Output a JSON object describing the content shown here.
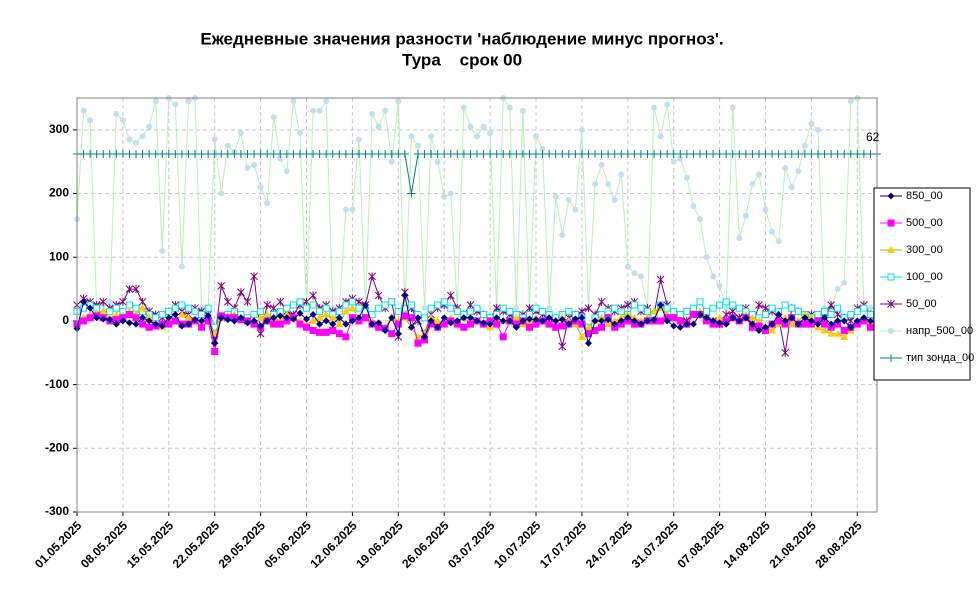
{
  "chart_data": {
    "type": "line",
    "title": "Ежедневные значения разности 'наблюдение минус прогноз'.",
    "subtitle": "Тура    срок 00",
    "annotation": "62",
    "categories": [
      "01.05.2025",
      null,
      null,
      null,
      null,
      null,
      null,
      "08.05.2025",
      null,
      null,
      null,
      null,
      null,
      null,
      "15.05.2025",
      null,
      null,
      null,
      null,
      null,
      null,
      "22.05.2025",
      null,
      null,
      null,
      null,
      null,
      null,
      "29.05.2025",
      null,
      null,
      null,
      null,
      null,
      null,
      "05.06.2025",
      null,
      null,
      null,
      null,
      null,
      null,
      "12.06.2025",
      null,
      null,
      null,
      null,
      null,
      null,
      "19.06.2025",
      null,
      null,
      null,
      null,
      null,
      null,
      "26.06.2025",
      null,
      null,
      null,
      null,
      null,
      null,
      "03.07.2025",
      null,
      null,
      null,
      null,
      null,
      null,
      "10.07.2025",
      null,
      null,
      null,
      null,
      null,
      null,
      "17.07.2025",
      null,
      null,
      null,
      null,
      null,
      null,
      "24.07.2025",
      null,
      null,
      null,
      null,
      null,
      null,
      "31.07.2025",
      null,
      null,
      null,
      null,
      null,
      null,
      "07.08.2025",
      null,
      null,
      null,
      null,
      null,
      null,
      "14.08.2025",
      null,
      null,
      null,
      null,
      null,
      null,
      "21.08.2025",
      null,
      null,
      null,
      null,
      null,
      null,
      "28.08.2025",
      null,
      null,
      null
    ],
    "ylim": [
      -300,
      350
    ],
    "yticks": [
      -300,
      -200,
      -100,
      0,
      100,
      200,
      300
    ],
    "grid": true,
    "series": [
      {
        "name": "850_00",
        "color": "#000080",
        "line_color": "#000080",
        "marker": "diamond",
        "values": [
          -12,
          30,
          20,
          5,
          3,
          2,
          -5,
          0,
          -3,
          -5,
          5,
          0,
          -5,
          -8,
          5,
          10,
          -8,
          -5,
          2,
          0,
          8,
          -35,
          5,
          2,
          0,
          5,
          -3,
          0,
          -8,
          0,
          5,
          8,
          5,
          3,
          12,
          3,
          10,
          -5,
          0,
          -5,
          5,
          -5,
          0,
          5,
          25,
          -5,
          -3,
          -15,
          5,
          -20,
          40,
          -10,
          5,
          -25,
          0,
          -10,
          5,
          -3,
          0,
          5,
          5,
          0,
          -3,
          -5,
          5,
          0,
          0,
          -10,
          0,
          3,
          2,
          0,
          5,
          0,
          2,
          -5,
          3,
          5,
          -35,
          0,
          0,
          2,
          -5,
          0,
          5,
          0,
          -5,
          0,
          2,
          25,
          0,
          -8,
          -10,
          -5,
          -5,
          10,
          5,
          0,
          -3,
          -5,
          5,
          0,
          5,
          -5,
          -15,
          -10,
          -5,
          10,
          0,
          5,
          -5,
          5,
          0,
          -5,
          5,
          -5,
          0,
          0,
          -10,
          0,
          5,
          0,
          -5
        ]
      },
      {
        "name": "500_00",
        "color": "#ff00ff",
        "line_color": "#ff00ff",
        "marker": "square",
        "values": [
          -5,
          0,
          5,
          8,
          5,
          0,
          2,
          5,
          10,
          5,
          -5,
          -10,
          -8,
          -5,
          -5,
          0,
          -5,
          -5,
          0,
          -10,
          0,
          -48,
          8,
          5,
          5,
          2,
          0,
          -5,
          -10,
          0,
          -5,
          -5,
          0,
          5,
          -5,
          -10,
          -15,
          -18,
          -18,
          -15,
          -20,
          -25,
          5,
          0,
          5,
          -5,
          -10,
          -12,
          -20,
          -5,
          8,
          5,
          -35,
          -30,
          -5,
          -10,
          -5,
          0,
          -5,
          -10,
          -5,
          0,
          -5,
          0,
          -5,
          -25,
          0,
          -5,
          0,
          -10,
          -5,
          0,
          -5,
          -10,
          -8,
          -5,
          0,
          -5,
          -20,
          -15,
          -10,
          5,
          -10,
          -5,
          0,
          -5,
          -5,
          0,
          0,
          0,
          5,
          5,
          0,
          -5,
          10,
          10,
          0,
          -5,
          -5,
          0,
          5,
          0,
          5,
          -10,
          -8,
          -15,
          -5,
          0,
          -5,
          5,
          -5,
          -5,
          -5,
          0,
          -5,
          -10,
          -5,
          -15,
          -10,
          -5,
          0,
          -10,
          -15
        ]
      },
      {
        "name": "300_00",
        "color": "#ffcc00",
        "line_color": "#c8a000",
        "marker": "triangle",
        "values": [
          -5,
          5,
          10,
          12,
          15,
          5,
          10,
          8,
          15,
          10,
          20,
          5,
          -5,
          -10,
          5,
          0,
          10,
          5,
          0,
          -5,
          5,
          -20,
          5,
          8,
          10,
          5,
          0,
          -5,
          5,
          10,
          5,
          0,
          10,
          5,
          0,
          -5,
          0,
          5,
          10,
          5,
          -5,
          15,
          20,
          5,
          5,
          0,
          -5,
          -10,
          5,
          0,
          5,
          -10,
          -25,
          -20,
          5,
          0,
          -5,
          5,
          0,
          5,
          5,
          0,
          -5,
          -10,
          5,
          0,
          0,
          5,
          -5,
          0,
          5,
          0,
          -5,
          0,
          5,
          0,
          -5,
          -25,
          -10,
          0,
          5,
          -5,
          0,
          5,
          10,
          5,
          0,
          5,
          15,
          20,
          10,
          5,
          0,
          -5,
          10,
          15,
          5,
          0,
          5,
          0,
          5,
          0,
          10,
          5,
          0,
          -10,
          -15,
          -5,
          5,
          -5,
          0,
          10,
          5,
          -10,
          -15,
          -20,
          -20,
          -25,
          -15,
          -5,
          5,
          0,
          -5
        ]
      },
      {
        "name": "100_00",
        "color": "#00e0e0",
        "line_color": "#00e0e0",
        "marker": "hollow-square",
        "values": [
          15,
          20,
          25,
          20,
          10,
          15,
          20,
          15,
          25,
          20,
          15,
          10,
          5,
          10,
          15,
          20,
          25,
          20,
          15,
          10,
          20,
          -10,
          5,
          10,
          15,
          10,
          5,
          10,
          15,
          5,
          10,
          15,
          20,
          25,
          30,
          20,
          25,
          15,
          20,
          10,
          15,
          25,
          30,
          20,
          15,
          10,
          20,
          25,
          30,
          15,
          20,
          25,
          10,
          5,
          20,
          25,
          30,
          20,
          15,
          10,
          15,
          20,
          10,
          5,
          10,
          20,
          15,
          10,
          5,
          10,
          20,
          15,
          10,
          5,
          10,
          15,
          10,
          5,
          -10,
          5,
          10,
          15,
          20,
          15,
          10,
          25,
          20,
          15,
          10,
          25,
          20,
          15,
          10,
          15,
          20,
          30,
          15,
          20,
          25,
          30,
          25,
          20,
          15,
          10,
          5,
          10,
          20,
          15,
          25,
          20,
          15,
          10,
          5,
          10,
          15,
          10,
          20,
          5,
          10,
          15,
          20,
          10,
          15
        ]
      },
      {
        "name": "50_00",
        "color": "#800080",
        "line_color": "#800080",
        "marker": "cross",
        "values": [
          25,
          35,
          30,
          25,
          30,
          20,
          25,
          30,
          50,
          50,
          30,
          15,
          10,
          5,
          15,
          25,
          15,
          10,
          20,
          15,
          10,
          -30,
          55,
          30,
          20,
          45,
          30,
          70,
          -20,
          25,
          20,
          30,
          15,
          10,
          25,
          30,
          40,
          20,
          25,
          15,
          20,
          30,
          35,
          30,
          25,
          70,
          40,
          20,
          30,
          -25,
          45,
          20,
          0,
          -20,
          10,
          20,
          25,
          40,
          20,
          10,
          25,
          15,
          10,
          5,
          20,
          15,
          10,
          5,
          10,
          20,
          15,
          10,
          5,
          0,
          -40,
          5,
          10,
          15,
          20,
          10,
          30,
          20,
          15,
          20,
          25,
          30,
          15,
          20,
          10,
          65,
          25,
          10,
          5,
          0,
          15,
          10,
          5,
          0,
          -5,
          10,
          15,
          5,
          20,
          -10,
          25,
          20,
          15,
          5,
          -50,
          20,
          15,
          5,
          10,
          0,
          5,
          25,
          10,
          5,
          0,
          20,
          25,
          10,
          -5
        ]
      },
      {
        "name": "напр_500_00",
        "color": "#c0e0ea",
        "line_color": "#b8f0b8",
        "marker": "circle",
        "values": [
          160,
          330,
          315,
          20,
          25,
          30,
          325,
          315,
          285,
          280,
          290,
          305,
          345,
          110,
          350,
          340,
          85,
          345,
          350,
          20,
          20,
          285,
          200,
          275,
          265,
          295,
          240,
          245,
          210,
          185,
          320,
          255,
          235,
          345,
          295,
          20,
          330,
          330,
          345,
          20,
          20,
          175,
          175,
          285,
          20,
          325,
          305,
          330,
          250,
          345,
          20,
          290,
          275,
          20,
          290,
          250,
          195,
          200,
          20,
          335,
          305,
          290,
          305,
          295,
          20,
          350,
          335,
          20,
          330,
          20,
          290,
          270,
          20,
          195,
          135,
          190,
          175,
          300,
          20,
          215,
          245,
          215,
          190,
          230,
          85,
          75,
          70,
          20,
          335,
          290,
          340,
          250,
          255,
          225,
          180,
          160,
          100,
          70,
          55,
          20,
          335,
          130,
          165,
          215,
          230,
          175,
          140,
          125,
          240,
          210,
          235,
          275,
          310,
          300,
          20,
          20,
          50,
          60,
          345,
          350,
          20,
          20,
          20
        ]
      },
      {
        "name": "тип зонда_00",
        "color": "#008080",
        "line_color": "#008080",
        "marker": "plus",
        "values": [
          262,
          262,
          262,
          262,
          262,
          262,
          262,
          262,
          262,
          262,
          262,
          262,
          262,
          262,
          262,
          262,
          262,
          262,
          262,
          262,
          262,
          262,
          262,
          262,
          262,
          262,
          262,
          262,
          262,
          262,
          262,
          262,
          262,
          262,
          262,
          262,
          262,
          262,
          262,
          262,
          262,
          262,
          262,
          262,
          262,
          262,
          262,
          262,
          262,
          262,
          262,
          200,
          262,
          262,
          262,
          262,
          262,
          262,
          262,
          262,
          262,
          262,
          262,
          262,
          262,
          262,
          262,
          262,
          262,
          262,
          262,
          262,
          262,
          262,
          262,
          262,
          262,
          262,
          262,
          262,
          262,
          262,
          262,
          262,
          262,
          262,
          262,
          262,
          262,
          262,
          262,
          262,
          262,
          262,
          262,
          262,
          262,
          262,
          262,
          262,
          262,
          262,
          262,
          262,
          262,
          262,
          262,
          262,
          262,
          262,
          262,
          262,
          262,
          262,
          262,
          262,
          262,
          262,
          262,
          262,
          262,
          262,
          262
        ]
      }
    ]
  }
}
